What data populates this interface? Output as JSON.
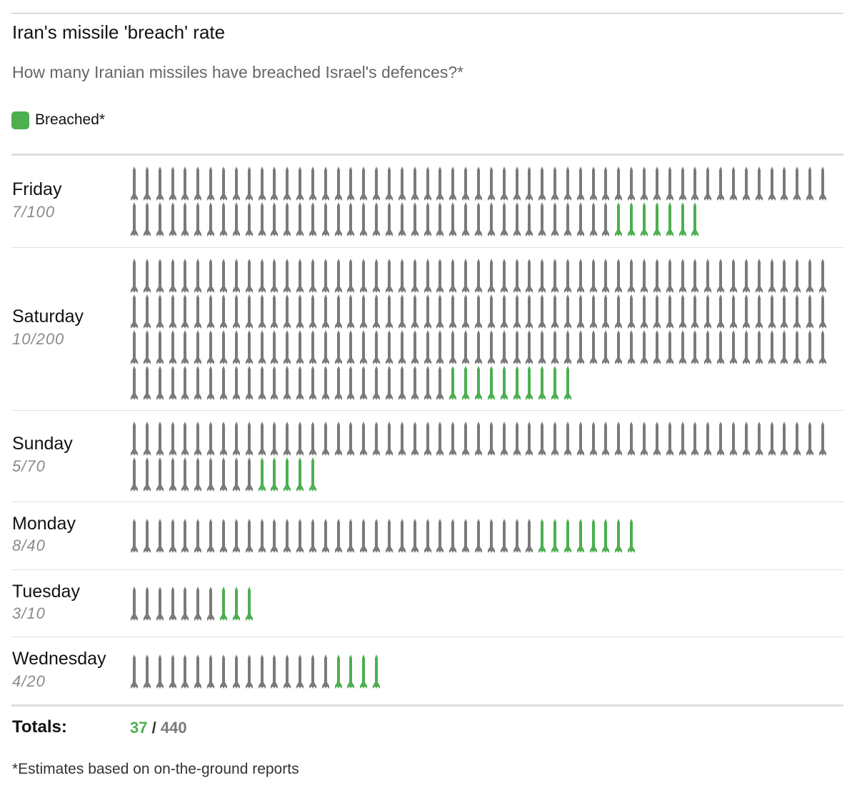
{
  "chart_data": {
    "type": "table",
    "title": "Iran's missile 'breach' rate",
    "subtitle": "How many Iranian missiles have breached Israel's defences?*",
    "legend": [
      {
        "label": "Breached*",
        "color": "#4caf50"
      }
    ],
    "rows": [
      {
        "day": "Friday",
        "count_label": "7/100",
        "breached": 7,
        "total": 100
      },
      {
        "day": "Saturday",
        "count_label": "10/200",
        "breached": 10,
        "total": 200
      },
      {
        "day": "Sunday",
        "count_label": "5/70",
        "breached": 5,
        "total": 70
      },
      {
        "day": "Monday",
        "count_label": "8/40",
        "breached": 8,
        "total": 40
      },
      {
        "day": "Tuesday",
        "count_label": "3/10",
        "breached": 3,
        "total": 10
      },
      {
        "day": "Wednesday",
        "count_label": "4/20",
        "breached": 4,
        "total": 20
      }
    ],
    "totals": {
      "label": "Totals:",
      "breached": "37",
      "separator": "/",
      "total": "440"
    },
    "footnote": "*Estimates based on on-the-ground reports"
  },
  "colors": {
    "breached": "#4caf50",
    "not_breached": "#7a7a7a"
  },
  "icons": {
    "missile": "missile-icon"
  }
}
